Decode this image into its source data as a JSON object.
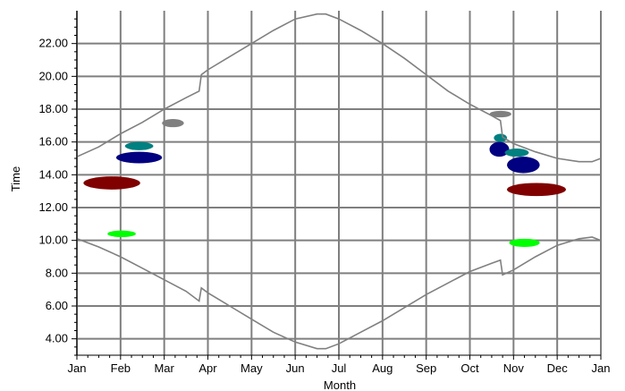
{
  "chart_data": {
    "type": "line",
    "xlabel": "Month",
    "ylabel": "Time",
    "x_ticks": [
      "Jan",
      "Feb",
      "Mar",
      "Apr",
      "May",
      "Jun",
      "Jul",
      "Aug",
      "Sep",
      "Oct",
      "Nov",
      "Dec",
      "Jan"
    ],
    "y_ticks": [
      "4.00",
      "6.00",
      "8.00",
      "10.00",
      "12.00",
      "14.00",
      "16.00",
      "18.00",
      "20.00",
      "22.00"
    ],
    "xlim": [
      0,
      12
    ],
    "ylim": [
      3,
      24
    ],
    "grid": true,
    "series": [
      {
        "kind": "curve",
        "color": "#808080",
        "x": [
          0,
          0.5,
          1,
          1.5,
          2,
          2.5,
          2.8,
          2.85,
          3,
          3.5,
          4,
          4.5,
          5,
          5.5,
          5.7,
          6,
          6.5,
          7,
          7.5,
          8,
          8.5,
          9,
          9.5,
          9.7,
          9.75,
          10,
          10.5,
          11,
          11.5,
          11.8,
          12
        ],
        "y": [
          15.1,
          15.7,
          16.5,
          17.2,
          18.0,
          18.7,
          19.1,
          20.1,
          20.4,
          21.2,
          22.0,
          22.8,
          23.5,
          23.8,
          23.8,
          23.5,
          22.8,
          22.0,
          21.1,
          20.1,
          19.1,
          18.3,
          17.6,
          17.3,
          16.3,
          15.9,
          15.4,
          15.0,
          14.8,
          14.8,
          15.0
        ]
      },
      {
        "kind": "curve",
        "color": "#808080",
        "x": [
          0,
          0.5,
          1,
          1.5,
          2,
          2.5,
          2.8,
          2.85,
          3,
          3.5,
          4,
          4.5,
          5,
          5.5,
          5.7,
          6,
          6.5,
          7,
          7.5,
          8,
          8.5,
          9,
          9.5,
          9.7,
          9.75,
          10,
          10.5,
          11,
          11.5,
          11.8,
          12
        ],
        "y": [
          10.1,
          9.6,
          9.0,
          8.3,
          7.6,
          6.9,
          6.3,
          7.1,
          6.8,
          6.0,
          5.2,
          4.4,
          3.8,
          3.4,
          3.4,
          3.7,
          4.4,
          5.1,
          5.9,
          6.7,
          7.4,
          8.1,
          8.6,
          8.8,
          7.9,
          8.2,
          9.0,
          9.7,
          10.1,
          10.2,
          10.0
        ]
      }
    ],
    "blobs": [
      {
        "color": "#00ff00",
        "x": [
          0.7,
          1.35
        ],
        "y": [
          10.2,
          10.6
        ]
      },
      {
        "color": "#800000",
        "x": [
          0.15,
          1.45
        ],
        "y": [
          13.1,
          13.9
        ]
      },
      {
        "color": "#000080",
        "x": [
          0.9,
          1.95
        ],
        "y": [
          14.7,
          15.4
        ]
      },
      {
        "color": "#008080",
        "x": [
          1.1,
          1.75
        ],
        "y": [
          15.5,
          16.0
        ]
      },
      {
        "color": "#808080",
        "x": [
          1.95,
          2.45
        ],
        "y": [
          16.9,
          17.4
        ]
      },
      {
        "color": "#808080",
        "x": [
          9.45,
          9.95
        ],
        "y": [
          17.5,
          17.9
        ]
      },
      {
        "color": "#008080",
        "x": [
          9.55,
          9.85
        ],
        "y": [
          16.0,
          16.5
        ]
      },
      {
        "color": "#000080",
        "x": [
          9.45,
          9.9
        ],
        "y": [
          15.1,
          16.0
        ]
      },
      {
        "color": "#008080",
        "x": [
          9.8,
          10.35
        ],
        "y": [
          15.1,
          15.6
        ]
      },
      {
        "color": "#000080",
        "x": [
          9.85,
          10.6
        ],
        "y": [
          14.1,
          15.1
        ]
      },
      {
        "color": "#800000",
        "x": [
          9.85,
          11.2
        ],
        "y": [
          12.7,
          13.5
        ]
      },
      {
        "color": "#00ff00",
        "x": [
          9.9,
          10.6
        ],
        "y": [
          9.6,
          10.1
        ]
      }
    ]
  }
}
